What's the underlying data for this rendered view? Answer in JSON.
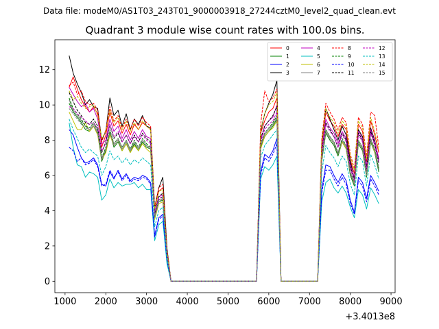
{
  "figure": {
    "suptitle": "Data file: modeM0/AS1T03_243T01_9000003918_27244cztM0_level2_quad_clean.evt"
  },
  "chart_data": {
    "type": "line",
    "title": "Quadrant 3 module wise count rates with 100.0s bins.",
    "xlabel": "",
    "ylabel": "",
    "x_offset_label": "+3.4013e8",
    "xlim": [
      750,
      9100
    ],
    "ylim": [
      -0.65,
      13.7
    ],
    "xticks": [
      1000,
      2000,
      3000,
      4000,
      5000,
      6000,
      7000,
      8000,
      9000
    ],
    "xtick_labels": [
      "1000",
      "2000",
      "3000",
      "4000",
      "5000",
      "6000",
      "7000",
      "8000",
      "9000"
    ],
    "yticks": [
      0,
      2,
      4,
      6,
      8,
      10,
      12
    ],
    "ytick_labels": [
      "0",
      "2",
      "4",
      "6",
      "8",
      "10",
      "12"
    ],
    "legend_position": "top-right",
    "x": [
      1100,
      1200,
      1300,
      1400,
      1500,
      1600,
      1700,
      1800,
      1900,
      2000,
      2100,
      2200,
      2300,
      2400,
      2500,
      2600,
      2700,
      2800,
      2900,
      3000,
      3100,
      3200,
      3300,
      3400,
      3500,
      3600,
      5700,
      5800,
      5900,
      6000,
      6100,
      6200,
      6300,
      6400,
      7200,
      7300,
      7400,
      7500,
      7600,
      7700,
      7800,
      7900,
      8000,
      8100,
      8200,
      8300,
      8400,
      8500,
      8600,
      8700
    ],
    "series": [
      {
        "name": "0",
        "color": "#ff0000",
        "dash": "solid",
        "values": [
          11.0,
          11.6,
          10.9,
          10.3,
          9.9,
          9.6,
          9.9,
          9.5,
          7.6,
          8.3,
          9.6,
          8.8,
          9.1,
          8.4,
          8.9,
          8.3,
          8.9,
          8.6,
          9.0,
          8.8,
          8.6,
          4.1,
          5.1,
          5.3,
          1.8,
          0,
          0,
          8.4,
          9.1,
          9.6,
          9.8,
          10.4,
          0,
          0,
          0,
          7.7,
          9.6,
          9.1,
          8.8,
          8.2,
          8.9,
          8.6,
          6.9,
          6.1,
          8.9,
          8.5,
          6.8,
          9.1,
          8.3,
          7.3
        ]
      },
      {
        "name": "1",
        "color": "#008000",
        "dash": "solid",
        "values": [
          10.1,
          9.6,
          9.3,
          9.0,
          8.6,
          8.5,
          8.8,
          8.4,
          6.8,
          7.4,
          8.4,
          7.6,
          7.9,
          7.4,
          7.8,
          7.3,
          7.8,
          7.4,
          7.9,
          7.6,
          7.5,
          3.6,
          4.5,
          4.6,
          1.5,
          0,
          0,
          7.6,
          8.2,
          8.5,
          8.8,
          9.2,
          0,
          0,
          0,
          6.8,
          8.4,
          8.0,
          7.7,
          7.1,
          7.9,
          7.5,
          6.0,
          5.4,
          7.8,
          7.4,
          5.9,
          7.9,
          7.3,
          6.2
        ]
      },
      {
        "name": "2",
        "color": "#0000ff",
        "dash": "solid",
        "values": [
          8.6,
          8.3,
          7.6,
          7.0,
          6.7,
          6.8,
          7.0,
          6.6,
          5.5,
          5.4,
          6.2,
          5.8,
          6.3,
          5.8,
          6.1,
          5.7,
          5.9,
          5.8,
          6.0,
          5.9,
          5.6,
          2.6,
          3.6,
          3.8,
          1.2,
          0,
          0,
          6.2,
          7.2,
          7.0,
          7.4,
          8.1,
          0,
          0,
          0,
          5.2,
          6.6,
          6.5,
          6.0,
          5.6,
          6.1,
          5.7,
          4.6,
          3.9,
          5.9,
          5.6,
          4.7,
          6.0,
          5.6,
          5.1
        ]
      },
      {
        "name": "3",
        "color": "#000000",
        "dash": "solid",
        "values": [
          12.8,
          11.8,
          11.2,
          10.7,
          10.0,
          10.3,
          9.9,
          9.8,
          8.0,
          8.5,
          10.4,
          9.4,
          9.7,
          8.8,
          9.5,
          8.6,
          9.2,
          8.9,
          9.4,
          8.8,
          8.7,
          4.2,
          5.3,
          5.9,
          1.9,
          0,
          0,
          8.5,
          9.5,
          10.1,
          10.6,
          11.4,
          0,
          0,
          0,
          7.9,
          9.8,
          9.2,
          8.6,
          8.0,
          8.8,
          8.3,
          6.8,
          5.8,
          8.6,
          8.2,
          6.5,
          8.7,
          8.0,
          6.9
        ]
      },
      {
        "name": "4",
        "color": "#bf00bf",
        "dash": "solid",
        "values": [
          11.0,
          10.6,
          10.2,
          9.9,
          10.1,
          9.6,
          9.8,
          9.2,
          7.8,
          8.0,
          9.2,
          8.5,
          8.8,
          8.1,
          8.6,
          8.0,
          8.5,
          8.1,
          8.6,
          8.2,
          8.1,
          3.9,
          4.8,
          4.9,
          1.6,
          0,
          0,
          8.0,
          8.8,
          9.1,
          9.3,
          10.0,
          0,
          0,
          0,
          7.4,
          9.2,
          8.7,
          8.4,
          7.8,
          8.5,
          8.1,
          6.6,
          5.9,
          8.5,
          8.1,
          6.5,
          8.6,
          7.9,
          7.0
        ]
      },
      {
        "name": "5",
        "color": "#00bfbf",
        "dash": "solid",
        "values": [
          9.0,
          7.6,
          6.6,
          6.5,
          5.9,
          6.2,
          6.1,
          5.9,
          4.6,
          4.9,
          5.8,
          5.3,
          5.6,
          5.4,
          5.5,
          5.5,
          5.6,
          5.3,
          5.5,
          5.2,
          5.2,
          2.3,
          3.2,
          3.4,
          1.0,
          0,
          0,
          5.8,
          6.5,
          6.3,
          6.6,
          7.1,
          0,
          0,
          0,
          4.5,
          5.6,
          5.8,
          5.3,
          5.0,
          5.4,
          5.0,
          4.2,
          3.6,
          5.2,
          4.9,
          4.1,
          5.3,
          4.9,
          4.4
        ]
      },
      {
        "name": "6",
        "color": "#bfbf00",
        "dash": "solid",
        "values": [
          9.6,
          9.1,
          8.6,
          8.6,
          9.0,
          8.5,
          8.8,
          8.3,
          6.9,
          7.3,
          8.3,
          7.7,
          8.0,
          7.4,
          7.8,
          7.3,
          7.7,
          7.4,
          7.8,
          7.5,
          7.3,
          3.5,
          4.4,
          4.5,
          1.5,
          0,
          0,
          7.5,
          8.2,
          8.5,
          8.7,
          9.1,
          0,
          0,
          0,
          6.9,
          8.5,
          8.1,
          7.8,
          7.2,
          7.9,
          7.5,
          6.1,
          5.5,
          7.9,
          7.5,
          6.0,
          8.0,
          7.3,
          6.4
        ]
      },
      {
        "name": "7",
        "color": "#808080",
        "dash": "solid",
        "values": [
          10.3,
          9.7,
          9.4,
          9.1,
          8.8,
          8.6,
          8.9,
          8.5,
          6.9,
          7.5,
          8.5,
          7.7,
          8.0,
          7.5,
          7.9,
          7.4,
          7.9,
          7.5,
          8.0,
          7.7,
          7.5,
          3.6,
          4.5,
          4.7,
          1.5,
          0,
          0,
          7.7,
          8.3,
          8.6,
          8.9,
          9.3,
          0,
          0,
          0,
          6.9,
          8.5,
          8.1,
          7.8,
          7.2,
          8.0,
          7.6,
          6.1,
          5.5,
          7.9,
          7.5,
          6.0,
          8.0,
          7.4,
          6.3
        ]
      },
      {
        "name": "8",
        "color": "#ff0000",
        "dash": "dashed",
        "values": [
          11.1,
          11.3,
          10.6,
          10.8,
          10.2,
          10.0,
          10.1,
          9.7,
          7.9,
          8.6,
          9.9,
          9.1,
          9.4,
          8.7,
          9.2,
          8.6,
          9.2,
          8.8,
          9.3,
          9.0,
          8.8,
          4.2,
          5.3,
          5.5,
          1.8,
          0,
          0,
          8.9,
          10.8,
          10.2,
          10.4,
          10.9,
          0,
          0,
          0,
          8.1,
          10.1,
          9.6,
          9.2,
          8.6,
          9.3,
          9.0,
          7.2,
          6.4,
          9.3,
          8.9,
          7.1,
          9.6,
          9.4,
          7.6
        ]
      },
      {
        "name": "9",
        "color": "#008000",
        "dash": "dashed",
        "values": [
          10.4,
          9.8,
          9.5,
          9.2,
          8.8,
          8.7,
          9.0,
          8.6,
          7.0,
          7.6,
          8.6,
          7.8,
          8.1,
          7.6,
          8.0,
          7.5,
          8.0,
          7.6,
          8.1,
          7.8,
          7.6,
          3.7,
          4.6,
          4.8,
          1.5,
          0,
          0,
          7.8,
          8.4,
          8.7,
          9.0,
          9.4,
          0,
          0,
          0,
          7.0,
          8.6,
          8.2,
          7.9,
          7.3,
          8.1,
          7.7,
          6.2,
          5.6,
          8.0,
          7.6,
          6.1,
          8.1,
          7.5,
          6.4
        ]
      },
      {
        "name": "10",
        "color": "#0000ff",
        "dash": "dashed",
        "values": [
          7.6,
          7.4,
          6.8,
          7.0,
          6.6,
          6.7,
          6.9,
          6.5,
          5.4,
          5.5,
          6.3,
          5.9,
          6.2,
          5.7,
          6.0,
          5.6,
          5.8,
          5.7,
          5.9,
          5.8,
          5.5,
          2.5,
          3.5,
          3.7,
          1.2,
          0,
          0,
          6.0,
          7.0,
          6.8,
          7.2,
          7.8,
          0,
          0,
          0,
          5.0,
          6.3,
          6.3,
          5.8,
          5.4,
          5.9,
          5.5,
          4.4,
          3.8,
          5.7,
          5.4,
          4.5,
          5.8,
          5.4,
          4.9
        ]
      },
      {
        "name": "11",
        "color": "#000000",
        "dash": "dashed",
        "values": [
          10.7,
          10.2,
          9.7,
          9.4,
          9.0,
          8.9,
          9.2,
          8.8,
          7.3,
          7.9,
          8.9,
          8.1,
          8.4,
          7.9,
          8.3,
          7.8,
          8.3,
          7.9,
          8.4,
          8.1,
          7.9,
          3.8,
          4.8,
          5.0,
          1.6,
          0,
          0,
          8.1,
          8.8,
          9.1,
          9.4,
          9.9,
          0,
          0,
          0,
          7.3,
          9.0,
          8.6,
          8.2,
          7.6,
          8.4,
          8.0,
          6.5,
          5.8,
          8.4,
          8.0,
          6.4,
          8.5,
          7.8,
          6.7
        ]
      },
      {
        "name": "12",
        "color": "#bf00bf",
        "dash": "dashed",
        "values": [
          9.9,
          9.8,
          9.5,
          9.3,
          9.1,
          8.9,
          9.0,
          8.7,
          7.4,
          7.8,
          8.9,
          8.2,
          8.5,
          7.9,
          8.3,
          7.8,
          8.2,
          7.9,
          8.3,
          8.0,
          7.8,
          3.8,
          4.7,
          4.8,
          1.6,
          0,
          0,
          7.9,
          8.6,
          8.9,
          9.1,
          9.6,
          0,
          0,
          0,
          7.2,
          8.9,
          8.5,
          8.2,
          7.6,
          8.3,
          7.9,
          6.4,
          5.7,
          8.3,
          7.9,
          6.3,
          8.4,
          7.7,
          6.8
        ]
      },
      {
        "name": "13",
        "color": "#00bfbf",
        "dash": "dashed",
        "values": [
          9.2,
          8.6,
          8.1,
          7.6,
          7.3,
          7.5,
          7.3,
          7.1,
          6.0,
          6.5,
          7.4,
          6.9,
          7.1,
          6.7,
          7.0,
          6.6,
          6.9,
          6.7,
          7.0,
          6.8,
          6.6,
          3.1,
          4.0,
          4.2,
          1.3,
          0,
          0,
          7.0,
          7.7,
          8.0,
          8.3,
          8.6,
          0,
          0,
          0,
          6.2,
          7.7,
          7.3,
          7.0,
          6.5,
          7.1,
          6.8,
          5.5,
          4.9,
          7.1,
          6.8,
          5.4,
          7.2,
          6.6,
          5.8
        ]
      },
      {
        "name": "14",
        "color": "#bfbf00",
        "dash": "dashed",
        "values": [
          10.8,
          10.3,
          10.5,
          10.1,
          9.8,
          9.9,
          10.0,
          9.4,
          8.1,
          8.5,
          9.7,
          9.0,
          9.3,
          8.6,
          9.1,
          8.5,
          9.0,
          8.6,
          9.1,
          8.8,
          8.6,
          4.1,
          5.1,
          5.2,
          1.7,
          0,
          0,
          8.6,
          9.5,
          10.0,
          10.2,
          10.7,
          0,
          0,
          0,
          7.9,
          9.8,
          9.3,
          9.0,
          8.4,
          9.1,
          8.8,
          7.1,
          6.3,
          9.1,
          8.7,
          6.9,
          9.3,
          8.5,
          7.4
        ]
      },
      {
        "name": "15",
        "color": "#808080",
        "dash": "dashed",
        "values": [
          9.8,
          9.5,
          9.2,
          8.9,
          8.7,
          8.6,
          8.8,
          8.4,
          7.0,
          7.5,
          8.5,
          7.8,
          8.1,
          7.6,
          8.0,
          7.5,
          7.9,
          7.6,
          8.0,
          7.7,
          7.6,
          3.7,
          4.6,
          4.7,
          1.5,
          0,
          0,
          7.7,
          8.4,
          8.7,
          8.9,
          9.3,
          0,
          0,
          0,
          7.0,
          8.6,
          8.2,
          7.9,
          7.3,
          8.0,
          7.7,
          6.2,
          5.6,
          8.0,
          7.6,
          6.1,
          8.1,
          7.5,
          6.5
        ]
      }
    ]
  }
}
